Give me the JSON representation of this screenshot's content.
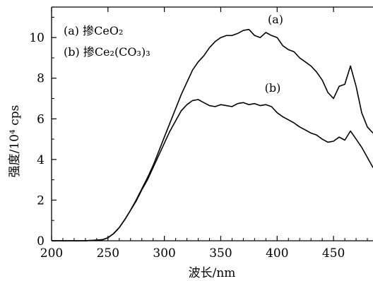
{
  "chart_data": {
    "type": "line",
    "xlabel": "波长/nm",
    "ylabel": "强度/10⁴ cps",
    "xlim": [
      200,
      485
    ],
    "ylim": [
      0,
      11.5
    ],
    "xticks": [
      "200",
      "250",
      "300",
      "350",
      "400",
      "450"
    ],
    "yticks": [
      "0",
      "2",
      "4",
      "6",
      "8",
      "10"
    ],
    "legend": {
      "placement": "top-left",
      "entries": [
        "(a) 掺CeO₂",
        "(b) 掺Ce₂(CO₃)₃"
      ]
    },
    "series": [
      {
        "name": "(a)",
        "color": "#000000",
        "x": [
          200,
          230,
          245,
          250,
          255,
          260,
          265,
          270,
          275,
          280,
          285,
          290,
          295,
          300,
          305,
          310,
          315,
          320,
          325,
          330,
          335,
          340,
          345,
          350,
          355,
          360,
          365,
          370,
          375,
          380,
          385,
          390,
          395,
          400,
          405,
          410,
          415,
          420,
          425,
          430,
          435,
          440,
          445,
          450,
          455,
          460,
          465,
          470,
          475,
          480,
          485
        ],
        "y": [
          0,
          0,
          0.05,
          0.15,
          0.35,
          0.65,
          1.05,
          1.5,
          2.0,
          2.55,
          3.1,
          3.7,
          4.4,
          5.1,
          5.8,
          6.5,
          7.2,
          7.8,
          8.4,
          8.8,
          9.1,
          9.5,
          9.8,
          10.0,
          10.1,
          10.1,
          10.2,
          10.35,
          10.4,
          10.1,
          10.0,
          10.25,
          10.1,
          10.0,
          9.6,
          9.4,
          9.3,
          9.0,
          8.8,
          8.6,
          8.3,
          7.9,
          7.3,
          7.0,
          7.6,
          7.7,
          8.6,
          7.6,
          6.3,
          5.6,
          5.3
        ]
      },
      {
        "name": "(b)",
        "color": "#000000",
        "x": [
          200,
          230,
          245,
          250,
          255,
          260,
          265,
          270,
          275,
          280,
          285,
          290,
          295,
          300,
          305,
          310,
          315,
          320,
          325,
          330,
          335,
          340,
          345,
          350,
          355,
          360,
          365,
          370,
          375,
          380,
          385,
          390,
          395,
          400,
          405,
          410,
          415,
          420,
          425,
          430,
          435,
          440,
          445,
          450,
          455,
          460,
          465,
          470,
          475,
          480,
          485
        ],
        "y": [
          0,
          0,
          0.05,
          0.15,
          0.35,
          0.65,
          1.05,
          1.5,
          1.95,
          2.5,
          3.0,
          3.6,
          4.2,
          4.8,
          5.4,
          5.9,
          6.4,
          6.7,
          6.9,
          6.95,
          6.8,
          6.65,
          6.6,
          6.7,
          6.65,
          6.6,
          6.75,
          6.8,
          6.7,
          6.75,
          6.65,
          6.7,
          6.6,
          6.3,
          6.1,
          5.95,
          5.8,
          5.6,
          5.45,
          5.3,
          5.2,
          5.0,
          4.85,
          4.9,
          5.1,
          4.95,
          5.4,
          5.0,
          4.6,
          4.1,
          3.6
        ]
      }
    ],
    "annotations": [
      "(a)",
      "(b)"
    ]
  }
}
